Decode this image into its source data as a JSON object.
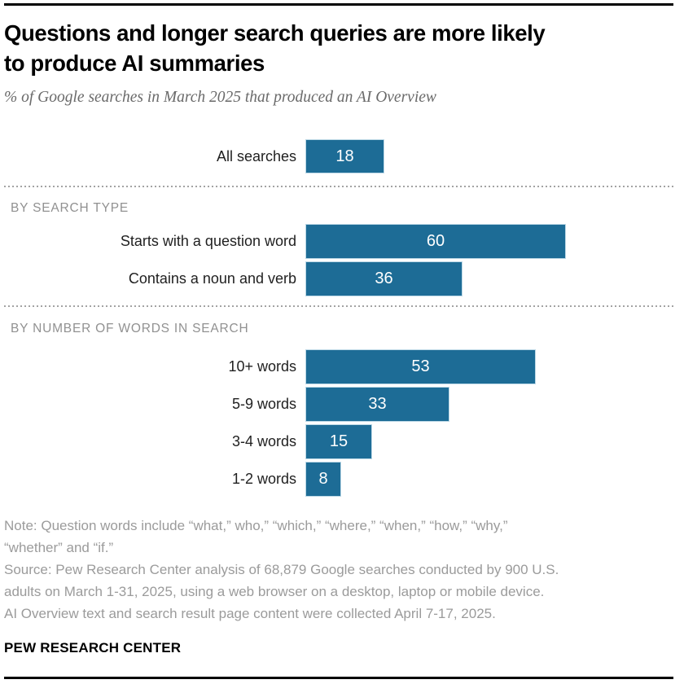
{
  "header": {
    "title_lines": [
      "Questions and longer search queries are more likely",
      "to produce AI summaries"
    ],
    "subtitle": "% of Google searches in March 2025 that produced an AI Overview"
  },
  "chart_data": {
    "type": "bar",
    "orientation": "horizontal",
    "title": "Questions and longer search queries are more likely to produce AI summaries",
    "subtitle": "% of Google searches in March 2025 that produced an AI Overview",
    "unit": "%",
    "xlim": [
      0,
      63
    ],
    "grid": false,
    "legend": false,
    "bar_color": "#1d6c96",
    "value_label_color": "#ffffff",
    "groups": [
      {
        "header": "",
        "rows": [
          {
            "label": "All searches",
            "value": 18
          }
        ]
      },
      {
        "header": "BY SEARCH TYPE",
        "rows": [
          {
            "label": "Starts with a question word",
            "value": 60
          },
          {
            "label": "Contains a noun and verb",
            "value": 36
          }
        ]
      },
      {
        "header": "BY NUMBER OF WORDS IN SEARCH",
        "rows": [
          {
            "label": "10+ words",
            "value": 53
          },
          {
            "label": "5-9 words",
            "value": 33
          },
          {
            "label": "3-4 words",
            "value": 15
          },
          {
            "label": "1-2 words",
            "value": 8
          }
        ]
      }
    ]
  },
  "footer": {
    "note_lines": [
      "Note: Question words include “what,” who,” “which,” “where,” “when,” “how,” “why,”",
      "“whether” and “if.”",
      "Source: Pew Research Center analysis of 68,879 Google searches conducted by 900 U.S.",
      "adults on March 1-31, 2025, using a web browser on a desktop, laptop or mobile device.",
      "AI Overview text and search result page content were collected April 7-17, 2025."
    ],
    "brand": "PEW RESEARCH CENTER"
  }
}
